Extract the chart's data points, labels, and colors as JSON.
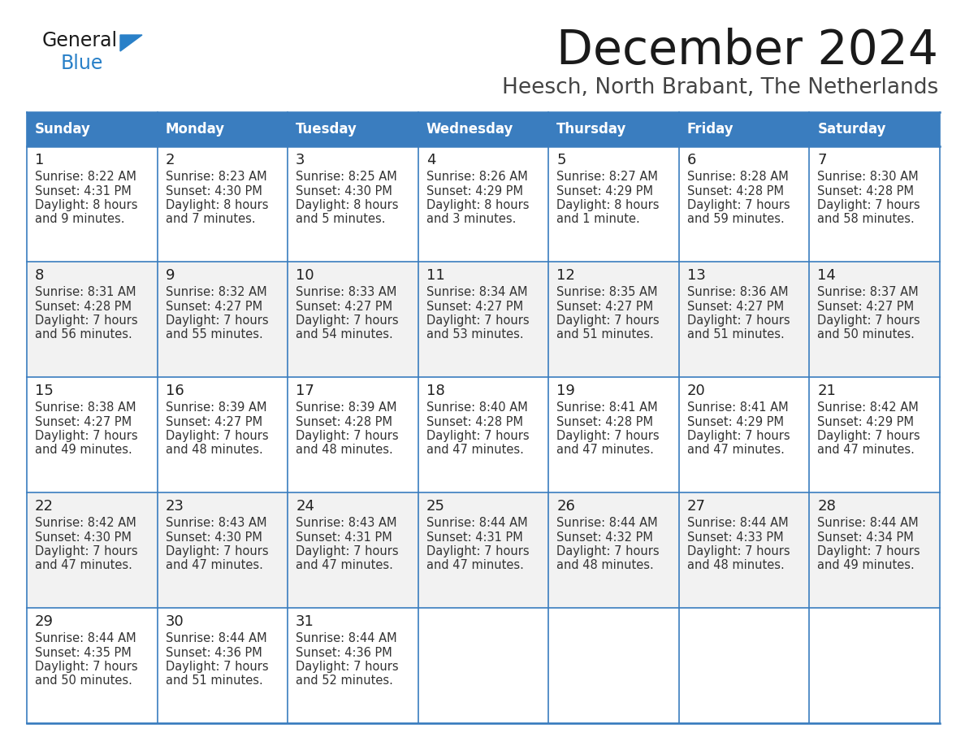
{
  "title": "December 2024",
  "subtitle": "Heesch, North Brabant, The Netherlands",
  "days_of_week": [
    "Sunday",
    "Monday",
    "Tuesday",
    "Wednesday",
    "Thursday",
    "Friday",
    "Saturday"
  ],
  "header_bg": "#3a7dbf",
  "header_text": "#ffffff",
  "row_bg_light": "#f2f2f2",
  "row_bg_white": "#ffffff",
  "border_color": "#3a7dbf",
  "title_color": "#1a1a1a",
  "subtitle_color": "#444444",
  "day_num_color": "#222222",
  "cell_text_color": "#333333",
  "logo_general_color": "#1a1a1a",
  "logo_blue_color": "#2980c8",
  "logo_triangle_color": "#2980c8",
  "calendar_data": [
    [
      {
        "day": 1,
        "sunrise": "8:22 AM",
        "sunset": "4:31 PM",
        "daylight": "8 hours and 9 minutes."
      },
      {
        "day": 2,
        "sunrise": "8:23 AM",
        "sunset": "4:30 PM",
        "daylight": "8 hours and 7 minutes."
      },
      {
        "day": 3,
        "sunrise": "8:25 AM",
        "sunset": "4:30 PM",
        "daylight": "8 hours and 5 minutes."
      },
      {
        "day": 4,
        "sunrise": "8:26 AM",
        "sunset": "4:29 PM",
        "daylight": "8 hours and 3 minutes."
      },
      {
        "day": 5,
        "sunrise": "8:27 AM",
        "sunset": "4:29 PM",
        "daylight": "8 hours and 1 minute."
      },
      {
        "day": 6,
        "sunrise": "8:28 AM",
        "sunset": "4:28 PM",
        "daylight": "7 hours and 59 minutes."
      },
      {
        "day": 7,
        "sunrise": "8:30 AM",
        "sunset": "4:28 PM",
        "daylight": "7 hours and 58 minutes."
      }
    ],
    [
      {
        "day": 8,
        "sunrise": "8:31 AM",
        "sunset": "4:28 PM",
        "daylight": "7 hours and 56 minutes."
      },
      {
        "day": 9,
        "sunrise": "8:32 AM",
        "sunset": "4:27 PM",
        "daylight": "7 hours and 55 minutes."
      },
      {
        "day": 10,
        "sunrise": "8:33 AM",
        "sunset": "4:27 PM",
        "daylight": "7 hours and 54 minutes."
      },
      {
        "day": 11,
        "sunrise": "8:34 AM",
        "sunset": "4:27 PM",
        "daylight": "7 hours and 53 minutes."
      },
      {
        "day": 12,
        "sunrise": "8:35 AM",
        "sunset": "4:27 PM",
        "daylight": "7 hours and 51 minutes."
      },
      {
        "day": 13,
        "sunrise": "8:36 AM",
        "sunset": "4:27 PM",
        "daylight": "7 hours and 51 minutes."
      },
      {
        "day": 14,
        "sunrise": "8:37 AM",
        "sunset": "4:27 PM",
        "daylight": "7 hours and 50 minutes."
      }
    ],
    [
      {
        "day": 15,
        "sunrise": "8:38 AM",
        "sunset": "4:27 PM",
        "daylight": "7 hours and 49 minutes."
      },
      {
        "day": 16,
        "sunrise": "8:39 AM",
        "sunset": "4:27 PM",
        "daylight": "7 hours and 48 minutes."
      },
      {
        "day": 17,
        "sunrise": "8:39 AM",
        "sunset": "4:28 PM",
        "daylight": "7 hours and 48 minutes."
      },
      {
        "day": 18,
        "sunrise": "8:40 AM",
        "sunset": "4:28 PM",
        "daylight": "7 hours and 47 minutes."
      },
      {
        "day": 19,
        "sunrise": "8:41 AM",
        "sunset": "4:28 PM",
        "daylight": "7 hours and 47 minutes."
      },
      {
        "day": 20,
        "sunrise": "8:41 AM",
        "sunset": "4:29 PM",
        "daylight": "7 hours and 47 minutes."
      },
      {
        "day": 21,
        "sunrise": "8:42 AM",
        "sunset": "4:29 PM",
        "daylight": "7 hours and 47 minutes."
      }
    ],
    [
      {
        "day": 22,
        "sunrise": "8:42 AM",
        "sunset": "4:30 PM",
        "daylight": "7 hours and 47 minutes."
      },
      {
        "day": 23,
        "sunrise": "8:43 AM",
        "sunset": "4:30 PM",
        "daylight": "7 hours and 47 minutes."
      },
      {
        "day": 24,
        "sunrise": "8:43 AM",
        "sunset": "4:31 PM",
        "daylight": "7 hours and 47 minutes."
      },
      {
        "day": 25,
        "sunrise": "8:44 AM",
        "sunset": "4:31 PM",
        "daylight": "7 hours and 47 minutes."
      },
      {
        "day": 26,
        "sunrise": "8:44 AM",
        "sunset": "4:32 PM",
        "daylight": "7 hours and 48 minutes."
      },
      {
        "day": 27,
        "sunrise": "8:44 AM",
        "sunset": "4:33 PM",
        "daylight": "7 hours and 48 minutes."
      },
      {
        "day": 28,
        "sunrise": "8:44 AM",
        "sunset": "4:34 PM",
        "daylight": "7 hours and 49 minutes."
      }
    ],
    [
      {
        "day": 29,
        "sunrise": "8:44 AM",
        "sunset": "4:35 PM",
        "daylight": "7 hours and 50 minutes."
      },
      {
        "day": 30,
        "sunrise": "8:44 AM",
        "sunset": "4:36 PM",
        "daylight": "7 hours and 51 minutes."
      },
      {
        "day": 31,
        "sunrise": "8:44 AM",
        "sunset": "4:36 PM",
        "daylight": "7 hours and 52 minutes."
      },
      null,
      null,
      null,
      null
    ]
  ]
}
